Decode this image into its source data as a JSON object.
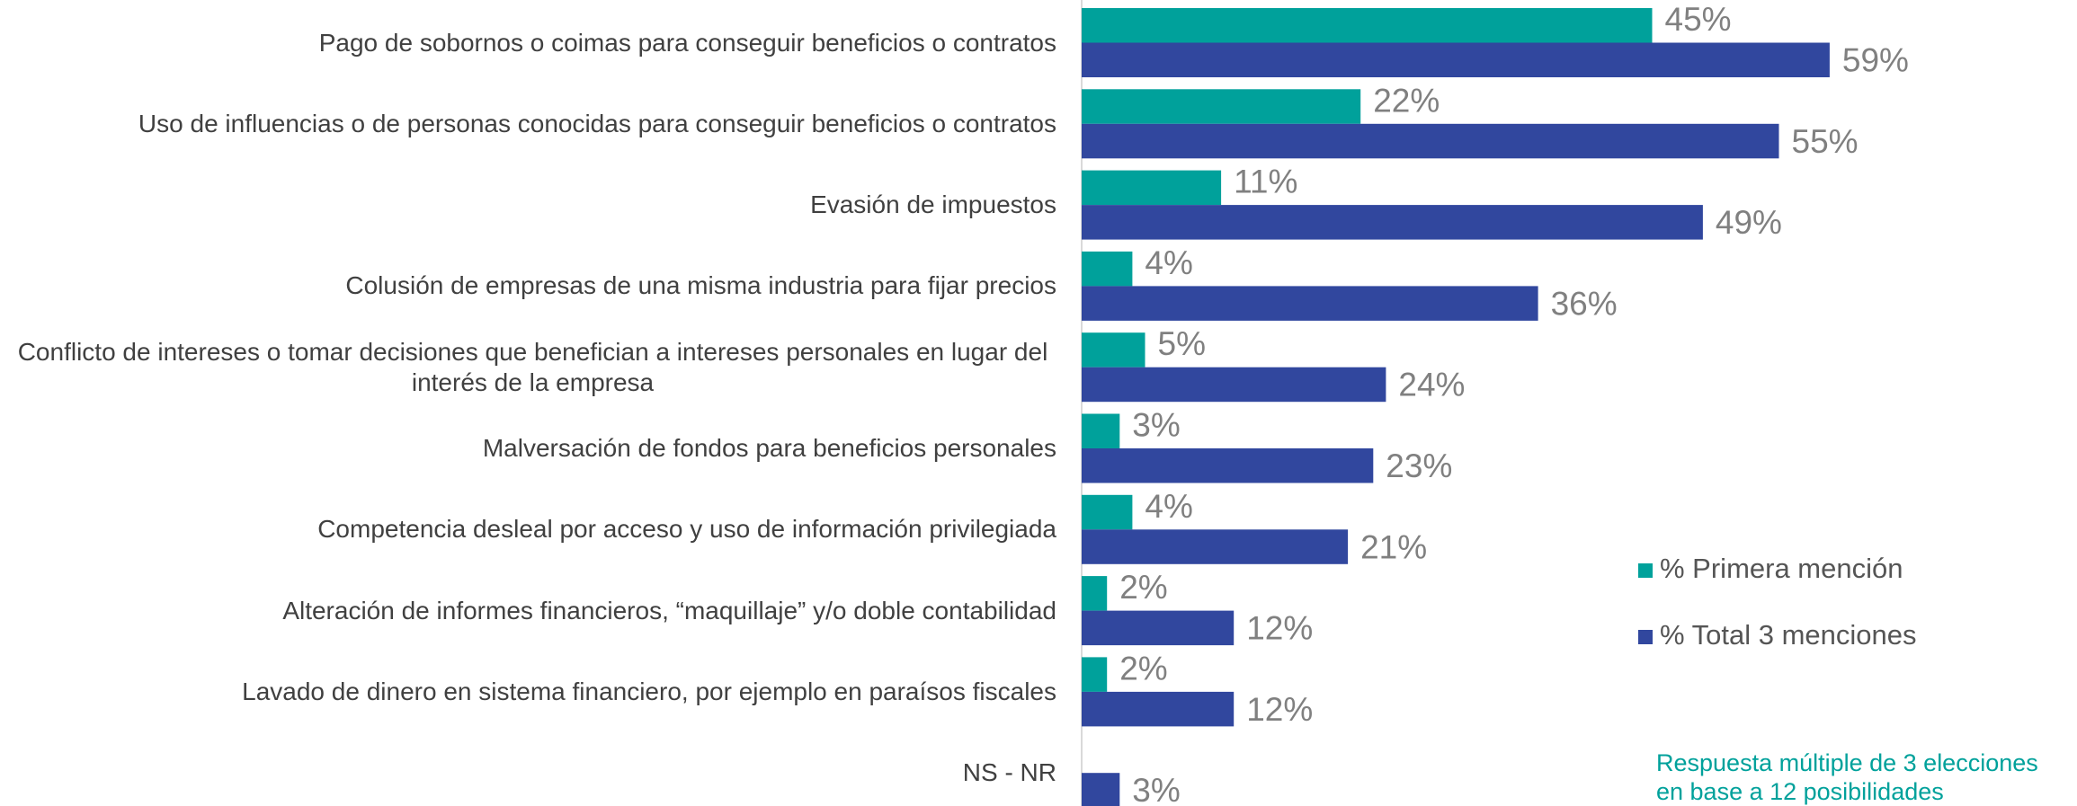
{
  "chart_data": {
    "type": "bar",
    "orientation": "horizontal",
    "categories": [
      "Pago de sobornos o coimas para conseguir beneficios o contratos",
      "Uso de influencias o de personas conocidas para conseguir beneficios o contratos",
      "Evasión de impuestos",
      "Colusión de empresas de una misma industria para fijar precios",
      "Conflicto de intereses o tomar decisiones que benefician a intereses personales en lugar del interés de la empresa",
      "Malversación de fondos para beneficios personales",
      "Competencia desleal por acceso y uso de información privilegiada",
      "Alteración de informes financieros, “maquillaje” y/o doble contabilidad",
      "Lavado de dinero en sistema financiero, por ejemplo en paraísos fiscales",
      "NS - NR"
    ],
    "series": [
      {
        "name": "% Primera mención",
        "color": "#00a19b",
        "values": [
          45,
          22,
          11,
          4,
          5,
          3,
          4,
          2,
          2,
          null
        ],
        "value_labels": [
          "45%",
          "22%",
          "11%",
          "4%",
          "5%",
          "3%",
          "4%",
          "2%",
          "2%",
          null
        ]
      },
      {
        "name": "% Total 3 menciones",
        "color": "#31479e",
        "values": [
          59,
          55,
          49,
          36,
          24,
          23,
          21,
          12,
          12,
          3
        ],
        "value_labels": [
          "59%",
          "55%",
          "49%",
          "36%",
          "24%",
          "23%",
          "21%",
          "12%",
          "12%",
          "3%"
        ]
      }
    ],
    "annotation": [
      "Respuesta múltiple de 3 elecciones",
      "en base a 12 posibilidades"
    ]
  }
}
